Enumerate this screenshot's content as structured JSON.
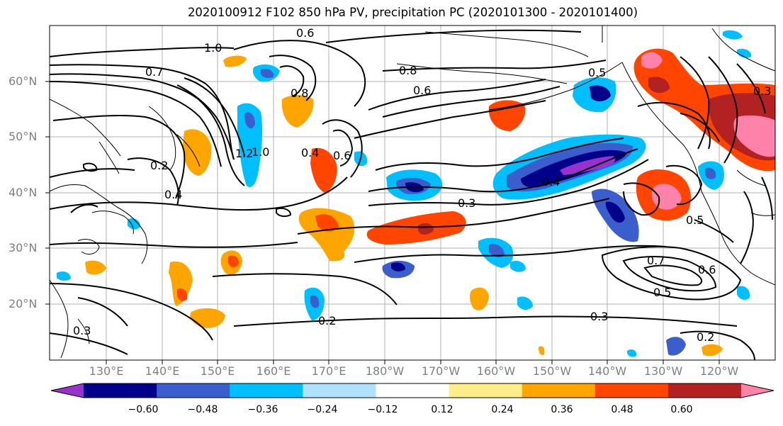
{
  "title": "2020100912 F102 850 hPa PV, precipitation PC (2020101300 - 2020101400)",
  "lat_labels": [
    "60°N",
    "50°N",
    "40°N",
    "30°N",
    "20°N"
  ],
  "lon_labels": [
    "130°E",
    "140°E",
    "150°E",
    "160°E",
    "170°E",
    "180°W",
    "170°W",
    "160°W",
    "150°W",
    "140°W",
    "130°W",
    "120°W"
  ],
  "contour_labels": [
    "0.6",
    "1.0",
    "0.7",
    "0.8",
    "0.8",
    "0.6",
    "0.4",
    "0.6",
    "1.2",
    "1.0",
    "0.2",
    "0.4",
    "0.3",
    "0.4",
    "0.7",
    "0.6",
    "0.5",
    "0.5",
    "0.2",
    "0.3",
    "0.2",
    "0.3",
    "0.5",
    "0.3"
  ],
  "colorbar": {
    "labels": [
      "−0.60",
      "−0.48",
      "−0.36",
      "−0.24",
      "−0.12",
      "0.12",
      "0.24",
      "0.36",
      "0.48",
      "0.60"
    ],
    "colors": [
      "#9932cc",
      "#00008b",
      "#3a5fcd",
      "#00bfff",
      "#b0e2ff",
      "#ffffff",
      "#ffec8b",
      "#ffa500",
      "#ff4500",
      "#b22222",
      "#ff82ab"
    ]
  }
}
